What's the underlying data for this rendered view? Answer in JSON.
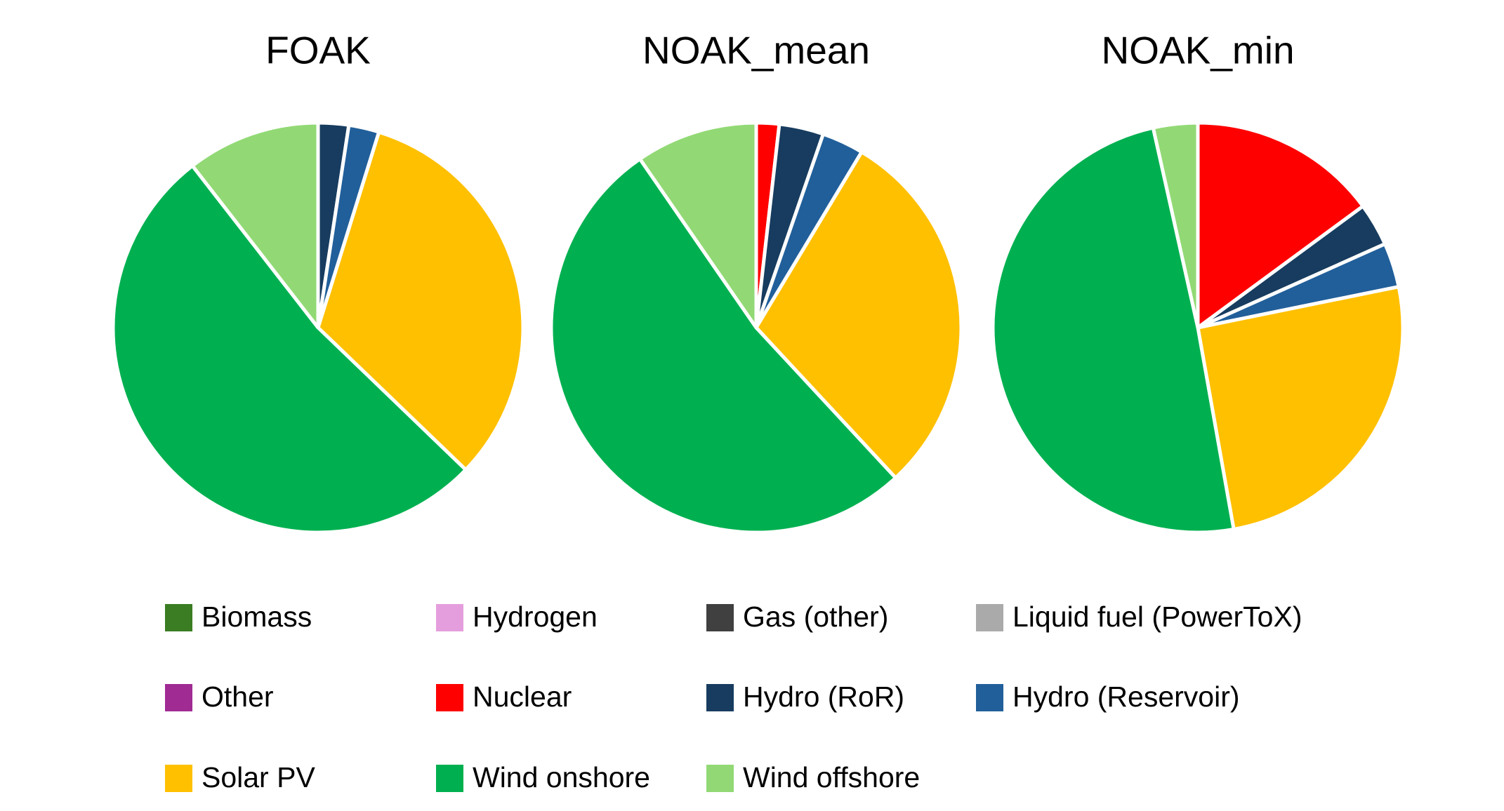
{
  "chart_data": [
    {
      "type": "pie",
      "title": "FOAK",
      "values": [
        0,
        0,
        0,
        0,
        0,
        0,
        2.4,
        2.4,
        32.4,
        52.3,
        10.5
      ]
    },
    {
      "type": "pie",
      "title": "NOAK_mean",
      "values": [
        0,
        0,
        0,
        0,
        0,
        1.8,
        3.5,
        3.3,
        29.5,
        52.3,
        9.6
      ]
    },
    {
      "type": "pie",
      "title": "NOAK_min",
      "values": [
        0,
        0,
        0,
        0,
        0,
        14.9,
        3.4,
        3.5,
        25.4,
        49.3,
        3.5
      ]
    }
  ],
  "legend": {
    "labels": [
      "Biomass",
      "Hydrogen",
      "Gas (other)",
      "Liquid fuel (PowerToX)",
      "Other",
      "Nuclear",
      "Hydro (RoR)",
      "Hydro (Reservoir)",
      "Solar PV",
      "Wind onshore",
      "Wind offshore"
    ],
    "colors": [
      "#3a7d22",
      "#e59edd",
      "#404040",
      "#aaaaaa",
      "#a02b93",
      "#ff0000",
      "#173c5f",
      "#215f9a",
      "#ffc000",
      "#00b050",
      "#92d975"
    ]
  }
}
